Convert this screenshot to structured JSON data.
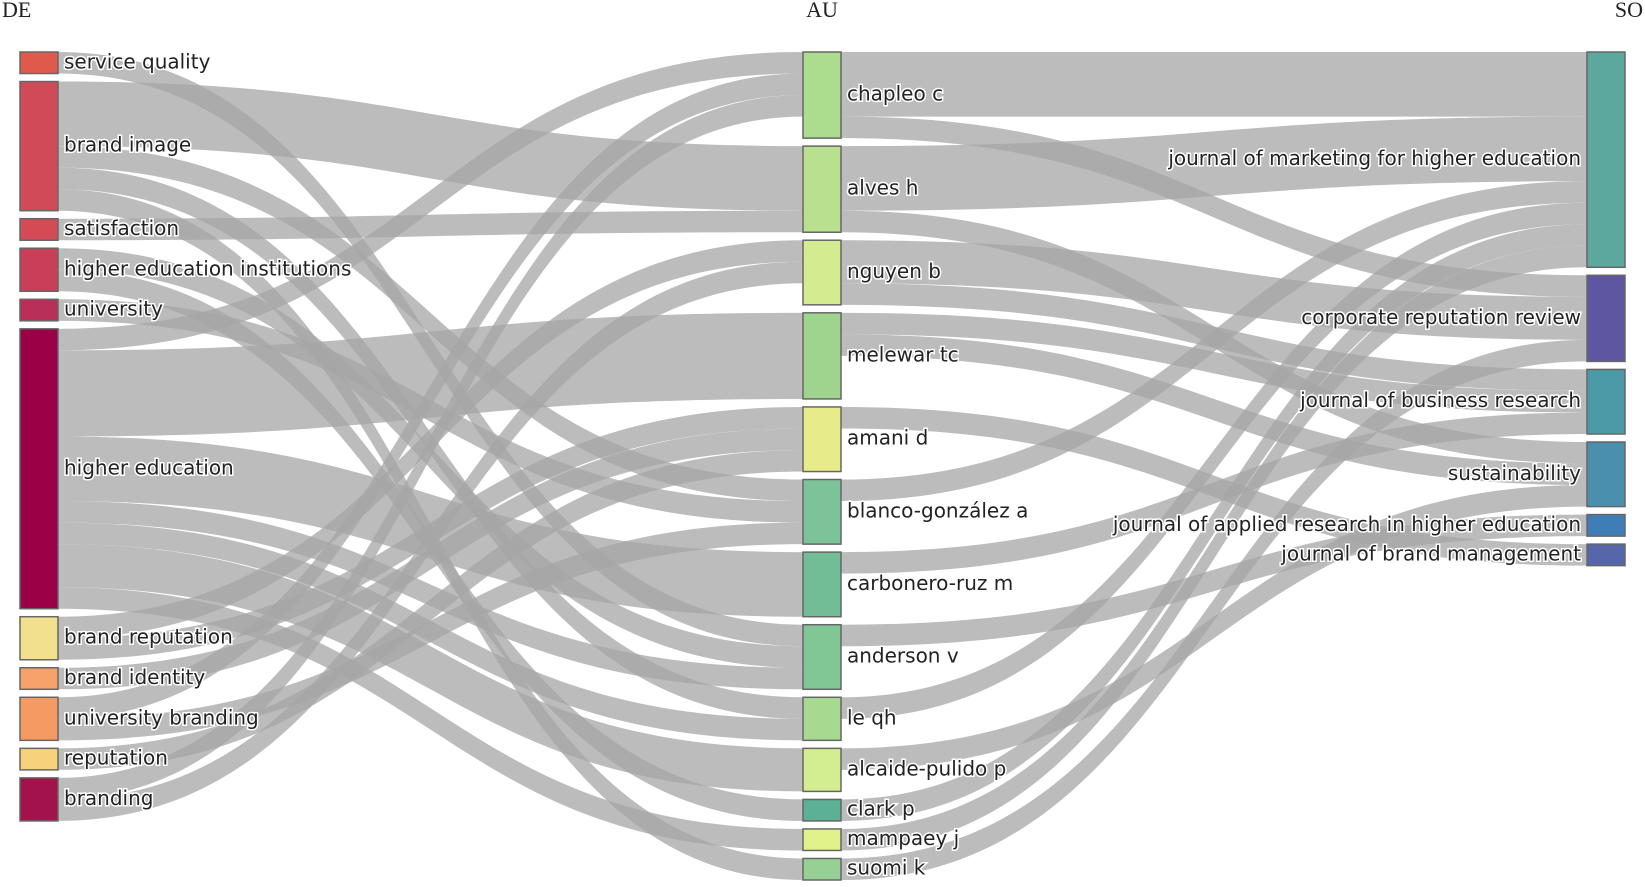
{
  "chart_data": {
    "type": "sankey",
    "link_color": "#a6a6a6",
    "columns": [
      {
        "name": "DE",
        "nodes": [
          {
            "label": "service quality",
            "color": "#e05a4c"
          },
          {
            "label": "brand image",
            "color": "#d04a58"
          },
          {
            "label": "satisfaction",
            "color": "#d44a55"
          },
          {
            "label": "higher education institutions",
            "color": "#c93f57"
          },
          {
            "label": "university",
            "color": "#b8305a"
          },
          {
            "label": "higher education",
            "color": "#9b0046"
          },
          {
            "label": "brand reputation",
            "color": "#f2e08e"
          },
          {
            "label": "brand identity",
            "color": "#f5a36a"
          },
          {
            "label": "university branding",
            "color": "#f59a62"
          },
          {
            "label": "reputation",
            "color": "#f7d27a"
          },
          {
            "label": "branding",
            "color": "#a3124a"
          }
        ]
      },
      {
        "name": "AU",
        "nodes": [
          {
            "label": "chapleo c",
            "color": "#acdd8e"
          },
          {
            "label": "alves h",
            "color": "#b8e08e"
          },
          {
            "label": "nguyen b",
            "color": "#d4ec90"
          },
          {
            "label": "melewar tc",
            "color": "#9fd48f"
          },
          {
            "label": "amani d",
            "color": "#e8eb8a"
          },
          {
            "label": "blanco-gonzález a",
            "color": "#7cc39a"
          },
          {
            "label": "carbonero-ruz m",
            "color": "#72bd96"
          },
          {
            "label": "anderson v",
            "color": "#80c795"
          },
          {
            "label": "le qh",
            "color": "#a8d990"
          },
          {
            "label": "alcaide-pulido p",
            "color": "#d3ee90"
          },
          {
            "label": "clark p",
            "color": "#5bb096"
          },
          {
            "label": "mampaey j",
            "color": "#e2f28a"
          },
          {
            "label": "suomi k",
            "color": "#96d095"
          }
        ]
      },
      {
        "name": "SO",
        "nodes": [
          {
            "label": "journal of marketing for higher education",
            "color": "#5ca89e"
          },
          {
            "label": "corporate reputation review",
            "color": "#5e56a0"
          },
          {
            "label": "journal of business research",
            "color": "#4a9aa8"
          },
          {
            "label": "sustainability",
            "color": "#4a8fae"
          },
          {
            "label": "journal of applied research in higher education",
            "color": "#3f7db6"
          },
          {
            "label": "journal of brand management",
            "color": "#5566aa"
          }
        ]
      }
    ],
    "links": [
      {
        "source": "service quality",
        "target": "anderson v",
        "value": 1
      },
      {
        "source": "brand image",
        "target": "alves h",
        "value": 3
      },
      {
        "source": "brand image",
        "target": "blanco-gonzález a",
        "value": 1
      },
      {
        "source": "brand image",
        "target": "le qh",
        "value": 1
      },
      {
        "source": "brand image",
        "target": "suomi k",
        "value": 1
      },
      {
        "source": "satisfaction",
        "target": "alves h",
        "value": 1
      },
      {
        "source": "higher education institutions",
        "target": "anderson v",
        "value": 1
      },
      {
        "source": "higher education institutions",
        "target": "clark p",
        "value": 1
      },
      {
        "source": "university",
        "target": "blanco-gonzález a",
        "value": 1
      },
      {
        "source": "higher education",
        "target": "chapleo c",
        "value": 1
      },
      {
        "source": "higher education",
        "target": "melewar tc",
        "value": 4
      },
      {
        "source": "higher education",
        "target": "carbonero-ruz m",
        "value": 3
      },
      {
        "source": "higher education",
        "target": "anderson v",
        "value": 1
      },
      {
        "source": "higher education",
        "target": "le qh",
        "value": 1
      },
      {
        "source": "higher education",
        "target": "alcaide-pulido p",
        "value": 2
      },
      {
        "source": "higher education",
        "target": "mampaey j",
        "value": 1
      },
      {
        "source": "brand reputation",
        "target": "nguyen b",
        "value": 1
      },
      {
        "source": "brand reputation",
        "target": "amani d",
        "value": 1
      },
      {
        "source": "brand identity",
        "target": "amani d",
        "value": 1
      },
      {
        "source": "university branding",
        "target": "chapleo c",
        "value": 1
      },
      {
        "source": "university branding",
        "target": "blanco-gonzález a",
        "value": 1
      },
      {
        "source": "reputation",
        "target": "amani d",
        "value": 1
      },
      {
        "source": "branding",
        "target": "chapleo c",
        "value": 1
      },
      {
        "source": "branding",
        "target": "nguyen b",
        "value": 1
      },
      {
        "source": "chapleo c",
        "target": "journal of marketing for higher education",
        "value": 3
      },
      {
        "source": "chapleo c",
        "target": "corporate reputation review",
        "value": 1
      },
      {
        "source": "alves h",
        "target": "journal of marketing for higher education",
        "value": 3
      },
      {
        "source": "alves h",
        "target": "sustainability",
        "value": 1
      },
      {
        "source": "nguyen b",
        "target": "corporate reputation review",
        "value": 2
      },
      {
        "source": "nguyen b",
        "target": "journal of business research",
        "value": 1
      },
      {
        "source": "melewar tc",
        "target": "journal of business research",
        "value": 1
      },
      {
        "source": "melewar tc",
        "target": "sustainability",
        "value": 1
      },
      {
        "source": "amani d",
        "target": "journal of brand management",
        "value": 1
      },
      {
        "source": "blanco-gonzález a",
        "target": "journal of marketing for higher education",
        "value": 1
      },
      {
        "source": "carbonero-ruz m",
        "target": "journal of business research",
        "value": 1
      },
      {
        "source": "anderson v",
        "target": "journal of applied research in higher education",
        "value": 1
      },
      {
        "source": "le qh",
        "target": "journal of marketing for higher education",
        "value": 1
      },
      {
        "source": "alcaide-pulido p",
        "target": "sustainability",
        "value": 1
      },
      {
        "source": "clark p",
        "target": "journal of marketing for higher education",
        "value": 1
      },
      {
        "source": "mampaey j",
        "target": "journal of marketing for higher education",
        "value": 1
      },
      {
        "source": "suomi k",
        "target": "corporate reputation review",
        "value": 1
      }
    ]
  }
}
